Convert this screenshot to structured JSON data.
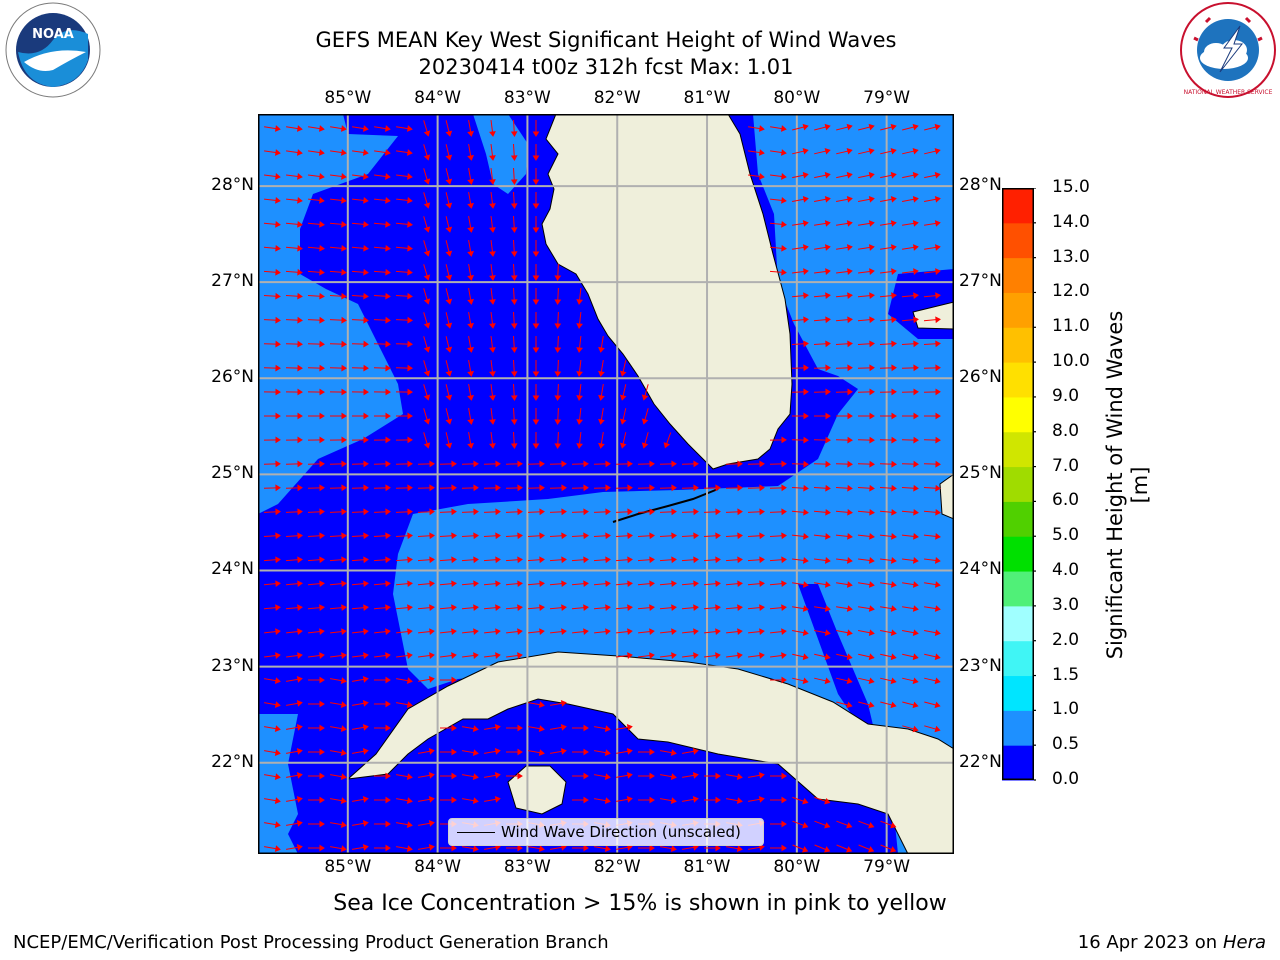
{
  "title": {
    "line1": "GEFS MEAN Key West Significant Height of Wind Waves",
    "line2": "20230414 t00z 312h fcst   Max: 1.01"
  },
  "logos": [
    {
      "name": "noaa-logo-icon",
      "text": "NOAA"
    },
    {
      "name": "nws-logo-icon",
      "text": "NATIONAL WEATHER SERVICE"
    }
  ],
  "map": {
    "lon_range": [
      -86.0,
      -78.25
    ],
    "lat_range": [
      21.05,
      28.75
    ],
    "lon_ticks": [
      -85,
      -84,
      -83,
      -82,
      -81,
      -80,
      -79
    ],
    "lat_ticks": [
      22,
      23,
      24,
      25,
      26,
      27,
      28
    ],
    "lon_labels": [
      "85°W",
      "84°W",
      "83°W",
      "82°W",
      "81°W",
      "80°W",
      "79°W"
    ],
    "lat_labels": [
      "22°N",
      "23°N",
      "24°N",
      "25°N",
      "26°N",
      "27°N",
      "28°N"
    ],
    "gridlines": true,
    "land_color": "#efefdb",
    "contour_colors": {
      "0.0-0.5": "#0000ff",
      "0.5-1.0": "#1e90ff"
    },
    "arrow_color": "#ff0000"
  },
  "colorbar": {
    "label": "Significant Height of Wind Waves [m]",
    "ticks": [
      "0.0",
      "0.5",
      "1.0",
      "1.5",
      "2.0",
      "3.0",
      "4.0",
      "5.0",
      "6.0",
      "7.0",
      "8.0",
      "9.0",
      "10.0",
      "11.0",
      "12.0",
      "13.0",
      "14.0",
      "15.0"
    ],
    "colors": [
      "#0000ff",
      "#1e90ff",
      "#00e5ff",
      "#40f5f5",
      "#a0ffff",
      "#50f078",
      "#00e000",
      "#50d000",
      "#a0dc00",
      "#d0e600",
      "#ffff00",
      "#ffe000",
      "#ffc000",
      "#ffa000",
      "#ff8000",
      "#ff5000",
      "#ff2000"
    ]
  },
  "legend": {
    "label": "Wind Wave Direction (unscaled)"
  },
  "footnote": "Sea Ice Concentration > 15% is shown in pink to yellow",
  "credit": {
    "left": "NCEP/EMC/Verification Post Processing Product Generation Branch",
    "right_prefix": "16 Apr 2023 on ",
    "right_host": "Hera"
  }
}
